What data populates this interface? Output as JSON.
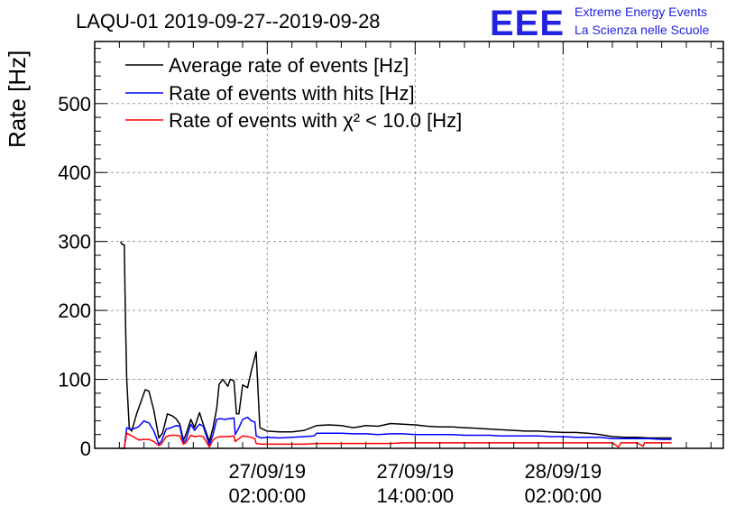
{
  "title": "LAQU-01 2019-09-27--2019-09-28",
  "logo": {
    "mark": "EEE",
    "line1": "Extreme Energy Events",
    "line2": "La Scienza nelle Scuole"
  },
  "chart_data": {
    "type": "line",
    "ylabel": "Rate [Hz]",
    "xlabel": "",
    "ylim": [
      0,
      590
    ],
    "xlim_hours": [
      -12,
      39
    ],
    "grid": true,
    "legend_position": "top-left",
    "y_ticks": [
      0,
      100,
      200,
      300,
      400,
      500
    ],
    "x_ticks": [
      {
        "hour": 2,
        "date": "27/09/19",
        "time": "02:00:00"
      },
      {
        "hour": 14,
        "date": "27/09/19",
        "time": "14:00:00"
      },
      {
        "hour": 26,
        "date": "28/09/19",
        "time": "02:00:00"
      }
    ],
    "series": [
      {
        "name": "Average rate of events [Hz]",
        "color": "#000000",
        "points": [
          [
            -9.9,
            300
          ],
          [
            -9.8,
            296
          ],
          [
            -9.6,
            295
          ],
          [
            -9.5,
            180
          ],
          [
            -9.4,
            100
          ],
          [
            -9.2,
            30
          ],
          [
            -9.0,
            25
          ],
          [
            -8.6,
            50
          ],
          [
            -8.2,
            70
          ],
          [
            -7.9,
            85
          ],
          [
            -7.6,
            83
          ],
          [
            -7.2,
            55
          ],
          [
            -6.8,
            15
          ],
          [
            -6.5,
            22
          ],
          [
            -6.1,
            50
          ],
          [
            -5.7,
            47
          ],
          [
            -5.4,
            43
          ],
          [
            -5.1,
            35
          ],
          [
            -4.8,
            12
          ],
          [
            -4.6,
            20
          ],
          [
            -4.2,
            42
          ],
          [
            -3.9,
            30
          ],
          [
            -3.5,
            52
          ],
          [
            -3.2,
            35
          ],
          [
            -2.7,
            10
          ],
          [
            -2.4,
            30
          ],
          [
            -2.1,
            58
          ],
          [
            -1.9,
            93
          ],
          [
            -1.6,
            100
          ],
          [
            -1.2,
            90
          ],
          [
            -1.0,
            100
          ],
          [
            -0.7,
            98
          ],
          [
            -0.5,
            50
          ],
          [
            -0.3,
            50
          ],
          [
            0.0,
            92
          ],
          [
            0.4,
            88
          ],
          [
            0.7,
            112
          ],
          [
            1.1,
            140
          ],
          [
            1.4,
            30
          ],
          [
            2.0,
            25
          ],
          [
            3.0,
            24
          ],
          [
            4.0,
            24
          ],
          [
            5.0,
            26
          ],
          [
            6.0,
            33
          ],
          [
            7.0,
            34
          ],
          [
            8.0,
            33
          ],
          [
            9.0,
            30
          ],
          [
            10.0,
            33
          ],
          [
            11.0,
            32
          ],
          [
            12.0,
            36
          ],
          [
            13.0,
            35
          ],
          [
            14.0,
            34
          ],
          [
            15.0,
            32
          ],
          [
            16.0,
            31
          ],
          [
            17.0,
            31
          ],
          [
            18.0,
            30
          ],
          [
            19.0,
            29
          ],
          [
            20.0,
            28
          ],
          [
            21.0,
            27
          ],
          [
            22.0,
            26
          ],
          [
            23.0,
            25
          ],
          [
            24.0,
            25
          ],
          [
            25.0,
            24
          ],
          [
            26.0,
            23
          ],
          [
            27.0,
            23
          ],
          [
            28.0,
            22
          ],
          [
            29.0,
            20
          ],
          [
            30.0,
            17
          ],
          [
            31.0,
            16
          ],
          [
            32.0,
            16
          ],
          [
            33.0,
            15
          ],
          [
            34.0,
            15
          ],
          [
            34.8,
            15
          ]
        ]
      },
      {
        "name": "Rate of events with hits [Hz]",
        "color": "#0000ff",
        "points": [
          [
            -9.9,
            0
          ],
          [
            -9.6,
            0
          ],
          [
            -9.4,
            30
          ],
          [
            -9.2,
            28
          ],
          [
            -9.0,
            28
          ],
          [
            -8.6,
            30
          ],
          [
            -8.4,
            32
          ],
          [
            -8.0,
            40
          ],
          [
            -7.8,
            38
          ],
          [
            -7.6,
            37
          ],
          [
            -7.2,
            25
          ],
          [
            -6.8,
            6
          ],
          [
            -6.6,
            10
          ],
          [
            -6.2,
            28
          ],
          [
            -5.8,
            30
          ],
          [
            -5.4,
            33
          ],
          [
            -5.1,
            32
          ],
          [
            -4.8,
            8
          ],
          [
            -4.6,
            12
          ],
          [
            -4.2,
            35
          ],
          [
            -3.9,
            26
          ],
          [
            -3.5,
            35
          ],
          [
            -3.2,
            32
          ],
          [
            -2.7,
            5
          ],
          [
            -2.4,
            20
          ],
          [
            -2.1,
            42
          ],
          [
            -1.8,
            43
          ],
          [
            -1.4,
            42
          ],
          [
            -1.1,
            43
          ],
          [
            -0.7,
            44
          ],
          [
            -0.6,
            20
          ],
          [
            -0.3,
            30
          ],
          [
            0.0,
            42
          ],
          [
            0.4,
            45
          ],
          [
            0.7,
            40
          ],
          [
            1.0,
            38
          ],
          [
            1.1,
            18
          ],
          [
            1.5,
            15
          ],
          [
            2.0,
            16
          ],
          [
            3.0,
            15
          ],
          [
            4.0,
            16
          ],
          [
            5.0,
            17
          ],
          [
            5.8,
            18
          ],
          [
            6.0,
            22
          ],
          [
            7.0,
            22
          ],
          [
            8.0,
            22
          ],
          [
            9.0,
            21
          ],
          [
            10.0,
            21
          ],
          [
            11.0,
            20
          ],
          [
            12.0,
            21
          ],
          [
            13.0,
            21
          ],
          [
            14.0,
            20
          ],
          [
            15.0,
            20
          ],
          [
            16.0,
            20
          ],
          [
            17.0,
            20
          ],
          [
            18.0,
            19
          ],
          [
            19.0,
            19
          ],
          [
            20.0,
            19
          ],
          [
            21.0,
            18
          ],
          [
            22.0,
            18
          ],
          [
            23.0,
            18
          ],
          [
            24.0,
            18
          ],
          [
            25.0,
            17
          ],
          [
            26.0,
            17
          ],
          [
            27.0,
            16
          ],
          [
            28.0,
            16
          ],
          [
            29.0,
            16
          ],
          [
            30.0,
            14
          ],
          [
            31.0,
            14
          ],
          [
            32.0,
            14
          ],
          [
            33.0,
            14
          ],
          [
            34.0,
            13
          ],
          [
            34.8,
            13
          ]
        ]
      },
      {
        "name": "Rate of events with χ² < 10.0 [Hz]",
        "color": "#ff0000",
        "points": [
          [
            -9.9,
            0
          ],
          [
            -9.6,
            0
          ],
          [
            -9.4,
            22
          ],
          [
            -9.2,
            20
          ],
          [
            -9.0,
            18
          ],
          [
            -8.6,
            14
          ],
          [
            -8.4,
            12
          ],
          [
            -8.0,
            13
          ],
          [
            -7.6,
            13
          ],
          [
            -7.2,
            10
          ],
          [
            -6.8,
            4
          ],
          [
            -6.6,
            6
          ],
          [
            -6.2,
            17
          ],
          [
            -5.8,
            19
          ],
          [
            -5.4,
            19
          ],
          [
            -5.1,
            18
          ],
          [
            -4.8,
            6
          ],
          [
            -4.6,
            8
          ],
          [
            -4.2,
            19
          ],
          [
            -3.9,
            17
          ],
          [
            -3.5,
            18
          ],
          [
            -3.2,
            17
          ],
          [
            -2.7,
            2
          ],
          [
            -2.4,
            12
          ],
          [
            -2.1,
            16
          ],
          [
            -1.8,
            17
          ],
          [
            -1.4,
            17
          ],
          [
            -1.1,
            17
          ],
          [
            -0.7,
            18
          ],
          [
            -0.6,
            10
          ],
          [
            -0.3,
            14
          ],
          [
            0.0,
            18
          ],
          [
            0.4,
            17
          ],
          [
            0.7,
            16
          ],
          [
            1.0,
            14
          ],
          [
            1.1,
            7
          ],
          [
            1.5,
            6
          ],
          [
            2.0,
            6
          ],
          [
            3.0,
            6
          ],
          [
            4.0,
            6
          ],
          [
            5.0,
            6
          ],
          [
            6.0,
            7
          ],
          [
            7.0,
            7
          ],
          [
            8.0,
            7
          ],
          [
            9.0,
            7
          ],
          [
            10.0,
            7
          ],
          [
            11.0,
            7
          ],
          [
            12.0,
            7
          ],
          [
            13.0,
            8
          ],
          [
            14.0,
            8
          ],
          [
            15.0,
            8
          ],
          [
            16.0,
            8
          ],
          [
            17.0,
            8
          ],
          [
            18.0,
            8
          ],
          [
            19.0,
            8
          ],
          [
            20.0,
            8
          ],
          [
            21.0,
            8
          ],
          [
            22.0,
            8
          ],
          [
            23.0,
            8
          ],
          [
            24.0,
            8
          ],
          [
            25.0,
            8
          ],
          [
            26.0,
            8
          ],
          [
            27.0,
            8
          ],
          [
            28.0,
            8
          ],
          [
            29.0,
            8
          ],
          [
            30.0,
            8
          ],
          [
            30.5,
            2
          ],
          [
            30.7,
            8
          ],
          [
            31.0,
            8
          ],
          [
            32.0,
            8
          ],
          [
            32.5,
            3
          ],
          [
            32.6,
            8
          ],
          [
            33.0,
            8
          ],
          [
            34.0,
            8
          ],
          [
            34.8,
            8
          ]
        ]
      }
    ]
  }
}
